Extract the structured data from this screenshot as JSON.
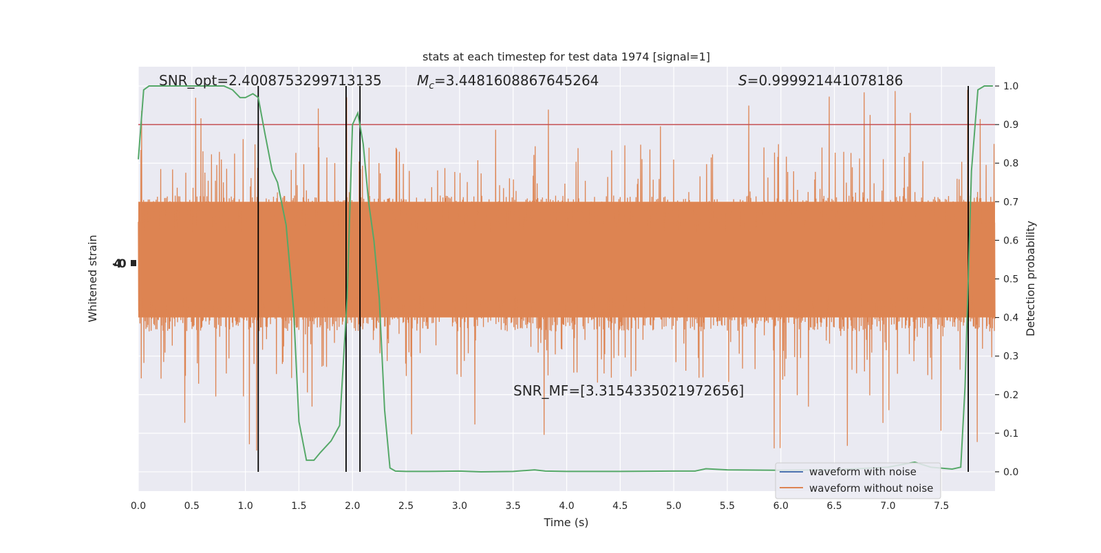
{
  "chart_data": {
    "type": "line",
    "title": "stats at each timestep for test data 1974 [signal=1]",
    "xlabel": "Time (s)",
    "ylabel_left": "Whitened strain",
    "ylabel_right": "Detection probability",
    "xlim": [
      0.0,
      8.0
    ],
    "x_ticks": [
      0.0,
      0.5,
      1.0,
      1.5,
      2.0,
      2.5,
      3.0,
      3.5,
      4.0,
      4.5,
      5.0,
      5.5,
      6.0,
      6.5,
      7.0,
      7.5
    ],
    "x_tick_labels": [
      "0.0",
      "0.5",
      "1.0",
      "1.5",
      "2.0",
      "2.5",
      "3.0",
      "3.5",
      "4.0",
      "4.5",
      "5.0",
      "5.5",
      "6.0",
      "6.5",
      "7.0",
      "7.5"
    ],
    "right_ylim": [
      -0.05,
      1.05
    ],
    "right_y_ticks": [
      0.0,
      0.1,
      0.2,
      0.3,
      0.4,
      0.5,
      0.6,
      0.7,
      0.8,
      0.9,
      1.0
    ],
    "right_y_tick_labels": [
      "0.0",
      "0.1",
      "0.2",
      "0.3",
      "0.4",
      "0.5",
      "0.6",
      "0.7",
      "0.8",
      "0.9",
      "1.0"
    ],
    "grid": true,
    "legend_position": "lower-right",
    "annotations": {
      "snr_opt": "SNR_opt=2.4008753299713135",
      "chirp_mass_symbol": "M",
      "chirp_mass_subscript": "c",
      "chirp_mass_value": "=3.4481608867645264",
      "s_symbol": "S",
      "s_value": "=0.999921441078186",
      "snr_mf": "SNR_MF=[3.3154335021972656]"
    },
    "threshold": 0.9,
    "vertical_lines_x": [
      1.12,
      1.94,
      2.07,
      7.75
    ],
    "series": [
      {
        "name": "waveform with noise",
        "color": "#4c72b0",
        "values_note": ""
      },
      {
        "name": "waveform without noise",
        "color": "#dd8452"
      }
    ],
    "detection_probability": {
      "color": "#55a868",
      "x": [
        0.0,
        0.05,
        0.1,
        0.2,
        0.3,
        0.4,
        0.5,
        0.6,
        0.7,
        0.8,
        0.88,
        0.95,
        1.0,
        1.07,
        1.12,
        1.18,
        1.25,
        1.3,
        1.38,
        1.45,
        1.5,
        1.57,
        1.64,
        1.7,
        1.8,
        1.88,
        1.95,
        2.0,
        2.05,
        2.1,
        2.15,
        2.2,
        2.25,
        2.3,
        2.35,
        2.4,
        2.5,
        2.7,
        3.0,
        3.2,
        3.5,
        3.7,
        3.8,
        4.0,
        4.5,
        5.0,
        5.2,
        5.3,
        5.5,
        6.0,
        6.5,
        7.0,
        7.25,
        7.4,
        7.6,
        7.68,
        7.72,
        7.78,
        7.84,
        7.9,
        7.98
      ],
      "y": [
        0.81,
        0.99,
        1.0,
        1.0,
        1.0,
        1.0,
        1.0,
        1.0,
        1.0,
        1.0,
        0.99,
        0.97,
        0.97,
        0.98,
        0.97,
        0.88,
        0.78,
        0.75,
        0.64,
        0.42,
        0.13,
        0.03,
        0.03,
        0.05,
        0.08,
        0.12,
        0.45,
        0.9,
        0.93,
        0.85,
        0.7,
        0.6,
        0.45,
        0.16,
        0.01,
        0.002,
        0.001,
        0.001,
        0.002,
        0.0,
        0.001,
        0.005,
        0.002,
        0.001,
        0.001,
        0.002,
        0.002,
        0.008,
        0.005,
        0.004,
        0.005,
        0.012,
        0.025,
        0.012,
        0.007,
        0.012,
        0.22,
        0.78,
        0.99,
        1.0,
        1.0
      ]
    },
    "noise_series": {
      "name": "waveform without noise",
      "center": 0.54,
      "core_band": [
        0.4,
        0.7
      ],
      "typical_range": [
        0.3,
        0.8
      ],
      "peak_range": [
        0.05,
        1.0
      ]
    },
    "left_axis_tick_text": "-40"
  }
}
